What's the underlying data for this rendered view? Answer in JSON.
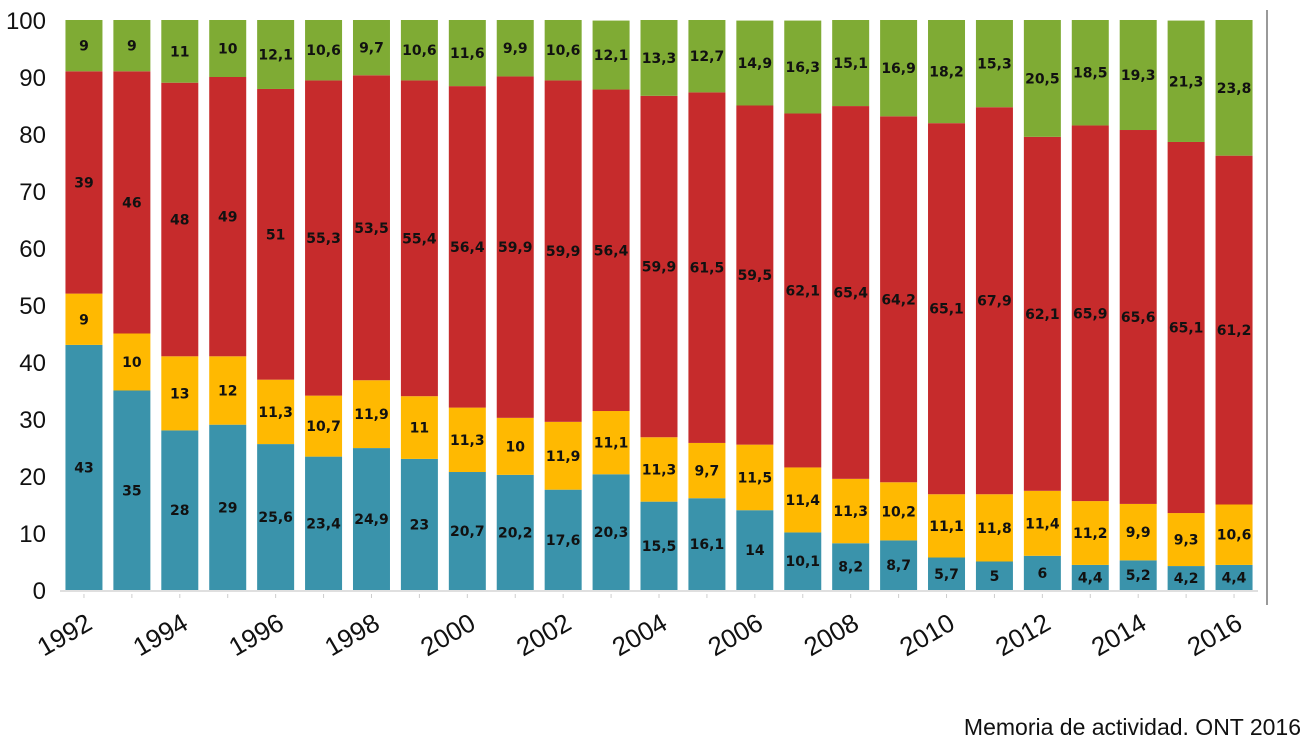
{
  "chart_data": {
    "type": "bar",
    "stacked": true,
    "title": "",
    "xlabel": "",
    "ylabel": "",
    "ylim": [
      0,
      100
    ],
    "yticks": [
      0,
      10,
      20,
      30,
      40,
      50,
      60,
      70,
      80,
      90,
      100
    ],
    "grid": false,
    "legend": "none",
    "categories": [
      "1992",
      "1993",
      "1994",
      "1995",
      "1996",
      "1997",
      "1998",
      "1999",
      "2000",
      "2001",
      "2002",
      "2003",
      "2004",
      "2005",
      "2006",
      "2007",
      "2008",
      "2009",
      "2010",
      "2011",
      "2012",
      "2013",
      "2014",
      "2015",
      "2016"
    ],
    "x_tick_labels": [
      "1992",
      "1994",
      "1996",
      "1998",
      "2000",
      "2002",
      "2004",
      "2006",
      "2008",
      "2010",
      "2012",
      "2014",
      "2016"
    ],
    "x_tick_labels_text": [
      "1992",
      "",
      "1994",
      "",
      "1996",
      "",
      "1998",
      "",
      "2000",
      "",
      "2002",
      "",
      "2004",
      "",
      "2006",
      "",
      "2008",
      "",
      "2010",
      "",
      "2012",
      "",
      "2014",
      "",
      "2016"
    ],
    "series": [
      {
        "color": "#3a93ab",
        "values": [
          43,
          35,
          28,
          29,
          25.6,
          23.4,
          24.9,
          23,
          20.7,
          20.2,
          17.6,
          20.3,
          15.5,
          16.1,
          14,
          10.1,
          8.2,
          8.7,
          5.7,
          5,
          6,
          4.4,
          5.2,
          4.2,
          4.4
        ],
        "labels": [
          "43",
          "35",
          "28",
          "29",
          "25,6",
          "23,4",
          "24,9",
          "23",
          "20,7",
          "20,2",
          "17,6",
          "20,3",
          "15,5",
          "16,1",
          "14",
          "10,1",
          "8,2",
          "8,7",
          "5,7",
          "5",
          "6",
          "4,4",
          "5,2",
          "4,2",
          "4,4"
        ]
      },
      {
        "color": "#ffb901",
        "values": [
          9,
          10,
          13,
          12,
          11.3,
          10.7,
          11.9,
          11,
          11.3,
          10,
          11.9,
          11.1,
          11.3,
          9.7,
          11.5,
          11.4,
          11.3,
          10.2,
          11.1,
          11.8,
          11.4,
          11.2,
          9.9,
          9.3,
          10.6
        ],
        "labels": [
          "9",
          "10",
          "13",
          "12",
          "11,3",
          "10,7",
          "11,9",
          "11",
          "11,3",
          "10",
          "11,9",
          "11,1",
          "11,3",
          "9,7",
          "11,5",
          "11,4",
          "11,3",
          "10,2",
          "11,1",
          "11,8",
          "11,4",
          "11,2",
          "9,9",
          "9,3",
          "10,6"
        ]
      },
      {
        "color": "#c62b2c",
        "values": [
          39,
          46,
          48,
          49,
          51,
          55.3,
          53.5,
          55.4,
          56.4,
          59.9,
          59.9,
          56.4,
          59.9,
          61.5,
          59.5,
          62.1,
          65.4,
          64.2,
          65.1,
          67.9,
          62.1,
          65.9,
          65.6,
          65.1,
          61.2
        ],
        "labels": [
          "39",
          "46",
          "48",
          "49",
          "51",
          "55,3",
          "53,5",
          "55,4",
          "56,4",
          "59,9",
          "59,9",
          "56,4",
          "59,9",
          "61,5",
          "59,5",
          "62,1",
          "65,4",
          "64,2",
          "65,1",
          "67,9",
          "62,1",
          "65,9",
          "65,6",
          "65,1",
          "61,2"
        ]
      },
      {
        "color": "#7fab34",
        "values": [
          9,
          9,
          11,
          10,
          12.1,
          10.6,
          9.7,
          10.6,
          11.6,
          9.9,
          10.6,
          12.1,
          13.3,
          12.7,
          14.9,
          16.3,
          15.1,
          16.9,
          18.2,
          15.3,
          20.5,
          18.5,
          19.3,
          21.3,
          23.8
        ],
        "labels": [
          "9",
          "9",
          "11",
          "10",
          "12,1",
          "10,6",
          "9,7",
          "10,6",
          "11,6",
          "9,9",
          "10,6",
          "12,1",
          "13,3",
          "12,7",
          "14,9",
          "16,3",
          "15,1",
          "16,9",
          "18,2",
          "15,3",
          "20,5",
          "18,5",
          "19,3",
          "21,3",
          "23,8"
        ]
      }
    ]
  },
  "source_note": "Memoria de actividad. ONT 2016"
}
